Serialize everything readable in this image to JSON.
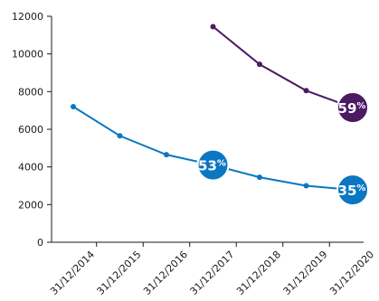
{
  "chart_data": {
    "type": "line",
    "x": [
      "31/12/2014",
      "31/12/2015",
      "31/12/2016",
      "31/12/2017",
      "31/12/2018",
      "31/12/2019",
      "31/12/2020"
    ],
    "ylim": [
      0,
      12000
    ],
    "yticks": [
      0,
      2000,
      4000,
      6000,
      8000,
      10000,
      12000
    ],
    "grid": false,
    "series": [
      {
        "color": "#0b77c2",
        "values": [
          7200,
          5650,
          4650,
          4100,
          3450,
          3000,
          2780
        ]
      },
      {
        "color": "#4b1a63",
        "values": [
          null,
          null,
          null,
          11450,
          9450,
          8050,
          7150
        ]
      }
    ],
    "annotations": [
      {
        "series": 0,
        "x": "31/12/2017",
        "number": "53",
        "unit": "%"
      },
      {
        "series": 0,
        "x": "31/12/2020",
        "number": "35",
        "unit": "%"
      },
      {
        "series": 1,
        "x": "31/12/2020",
        "number": "59",
        "unit": "%"
      }
    ]
  }
}
